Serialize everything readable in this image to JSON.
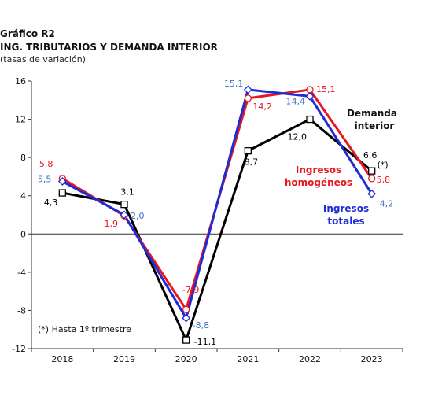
{
  "chart_data": {
    "type": "line",
    "title": "Gráfico R2",
    "subtitle": "ING. TRIBUTARIOS Y DEMANDA INTERIOR",
    "subtitle2": "(tasas de variación)",
    "categories": [
      "2018",
      "2019",
      "2020",
      "2021",
      "2022",
      "2023"
    ],
    "ylim": [
      -12,
      16
    ],
    "yticks": [
      -12,
      -8,
      -4,
      0,
      4,
      8,
      12,
      16
    ],
    "grid": false,
    "series": [
      {
        "name": "Demanda interior",
        "color": "#000000",
        "values": [
          4.3,
          3.1,
          -11.1,
          8.7,
          12.0,
          6.6
        ],
        "labels": [
          "4,3",
          "3,1",
          "-11,1",
          "8,7",
          "12,0",
          "6,6"
        ],
        "note_label": "(*)"
      },
      {
        "name": "Ingresos homogéneos",
        "color": "#e8161f",
        "values": [
          5.8,
          1.9,
          -7.9,
          14.2,
          15.1,
          5.8
        ],
        "labels": [
          "5,8",
          "1,9",
          "-7,9",
          "14,2",
          "15,1",
          "5,8"
        ]
      },
      {
        "name": "Ingresos totales",
        "color": "#1f2bd6",
        "label_color": "#3a70c6",
        "values": [
          5.5,
          2.0,
          -8.8,
          15.1,
          14.4,
          4.2
        ],
        "labels": [
          "5,5",
          "2,0",
          "-8,8",
          "15,1",
          "14,4",
          "4,2"
        ]
      }
    ],
    "legend": {
      "demanda": [
        "Demanda",
        "interior"
      ],
      "homogeneos": [
        "Ingresos",
        "homogéneos"
      ],
      "totales": [
        "Ingresos",
        "totales"
      ]
    },
    "footnote": "(*) Hasta 1º trimestre"
  }
}
